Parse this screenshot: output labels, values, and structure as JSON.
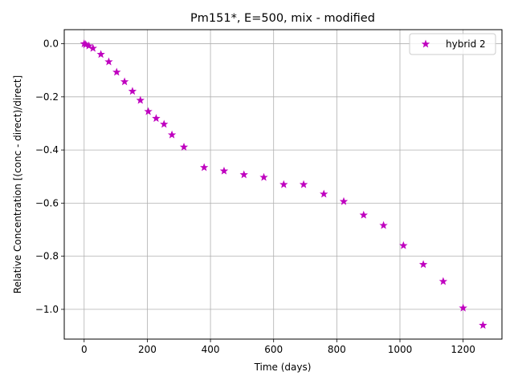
{
  "chart_data": {
    "type": "scatter",
    "title": "Pm151*, E=500, mix - modified",
    "xlabel": "Time (days)",
    "ylabel": "Relative Concentration [(conc - direct)/direct]",
    "xlim": [
      -63,
      1323
    ],
    "ylim": [
      -1.112,
      0.053
    ],
    "xticks": [
      0,
      200,
      400,
      600,
      800,
      1000,
      1200
    ],
    "xtick_labels": [
      "0",
      "200",
      "400",
      "600",
      "800",
      "1000",
      "1200"
    ],
    "yticks": [
      0.0,
      -0.2,
      -0.4,
      -0.6,
      -0.8,
      -1.0
    ],
    "ytick_labels": [
      "0.0",
      "−0.2",
      "−0.4",
      "−0.6",
      "−0.8",
      "−1.0"
    ],
    "grid": true,
    "legend_position": "top-right",
    "series": [
      {
        "name": "hybrid 2",
        "color": "#bf00bf",
        "marker": "star",
        "x": [
          0,
          5,
          15,
          28,
          53,
          78,
          103,
          128,
          153,
          178,
          203,
          228,
          253,
          278,
          316,
          380,
          443,
          506,
          569,
          632,
          695,
          759,
          822,
          885,
          948,
          1011,
          1074,
          1137,
          1200,
          1263
        ],
        "y": [
          0.0,
          -0.003,
          -0.008,
          -0.017,
          -0.04,
          -0.068,
          -0.107,
          -0.143,
          -0.179,
          -0.213,
          -0.255,
          -0.281,
          -0.303,
          -0.343,
          -0.389,
          -0.466,
          -0.479,
          -0.493,
          -0.503,
          -0.53,
          -0.53,
          -0.566,
          -0.594,
          -0.645,
          -0.684,
          -0.76,
          -0.831,
          -0.895,
          -0.995,
          -1.06
        ]
      }
    ]
  }
}
